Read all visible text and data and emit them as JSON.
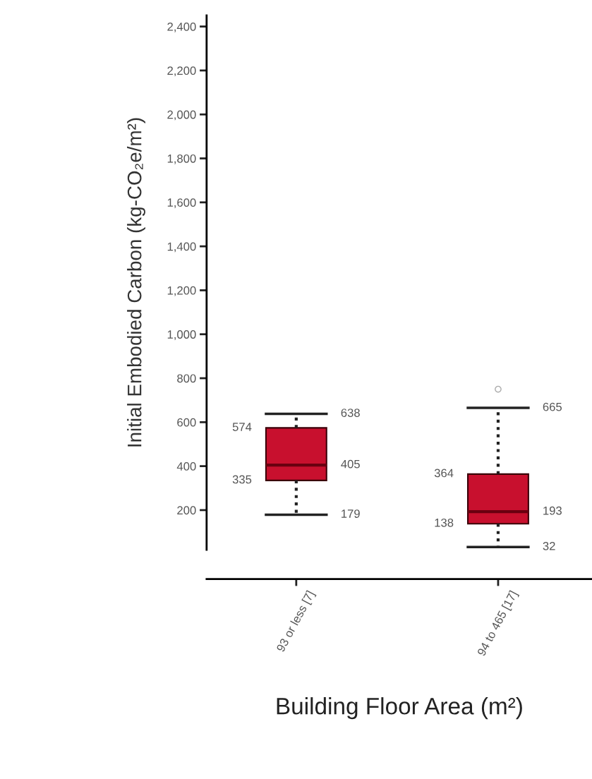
{
  "chart_data": {
    "type": "box",
    "xlabel": "Building Floor Area (m²)",
    "ylabel": "Initial Embodied Carbon (kg-CO₂e/m²)",
    "categories": [
      "93 or less [7]",
      "94 to 465 [17]"
    ],
    "boxes": [
      {
        "low": 179,
        "q1": 335,
        "median": 405,
        "q3": 574,
        "high": 638
      },
      {
        "low": 32,
        "q1": 138,
        "median": 193,
        "q3": 364,
        "high": 665,
        "outliers": [
          750
        ]
      }
    ],
    "annotations": [
      "574",
      "335",
      "638",
      "405",
      "179",
      "364",
      "138",
      "665",
      "193",
      "32"
    ],
    "color": "#c8102e",
    "grid": false,
    "legend": false,
    "ylim": [
      20,
      2450
    ],
    "yticks": [
      {
        "value": 200,
        "label": "200"
      },
      {
        "value": 400,
        "label": "400"
      },
      {
        "value": 600,
        "label": "600"
      },
      {
        "value": 800,
        "label": "800"
      },
      {
        "value": 1000,
        "label": "1,000"
      },
      {
        "value": 1200,
        "label": "1,200"
      },
      {
        "value": 1400,
        "label": "1,400"
      },
      {
        "value": 1600,
        "label": "1,600"
      },
      {
        "value": 1800,
        "label": "1,800"
      },
      {
        "value": 2000,
        "label": "2,000"
      },
      {
        "value": 2200,
        "label": "2,200"
      },
      {
        "value": 2400,
        "label": "2,400"
      }
    ]
  }
}
